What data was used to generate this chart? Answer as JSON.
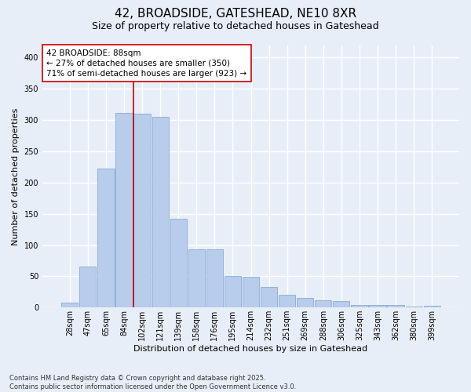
{
  "title_line1": "42, BROADSIDE, GATESHEAD, NE10 8XR",
  "title_line2": "Size of property relative to detached houses in Gateshead",
  "xlabel": "Distribution of detached houses by size in Gateshead",
  "ylabel": "Number of detached properties",
  "categories": [
    "28sqm",
    "47sqm",
    "65sqm",
    "84sqm",
    "102sqm",
    "121sqm",
    "139sqm",
    "158sqm",
    "176sqm",
    "195sqm",
    "214sqm",
    "232sqm",
    "251sqm",
    "269sqm",
    "288sqm",
    "306sqm",
    "325sqm",
    "343sqm",
    "362sqm",
    "380sqm",
    "399sqm"
  ],
  "bar_values": [
    8,
    65,
    222,
    312,
    310,
    305,
    142,
    93,
    93,
    50,
    49,
    33,
    20,
    15,
    12,
    10,
    4,
    4,
    4,
    1,
    3
  ],
  "bar_color": "#b8cceb",
  "bar_edgecolor": "#88aad4",
  "background_color": "#e8eef8",
  "grid_color": "#d0d8ec",
  "vline_x": 3.5,
  "vline_color": "#cc0000",
  "annotation_text": "42 BROADSIDE: 88sqm\n← 27% of detached houses are smaller (350)\n71% of semi-detached houses are larger (923) →",
  "annotation_box_facecolor": "#ffffff",
  "annotation_box_edgecolor": "#cc0000",
  "annotation_fontsize": 7.5,
  "footer_text": "Contains HM Land Registry data © Crown copyright and database right 2025.\nContains public sector information licensed under the Open Government Licence v3.0.",
  "ylim": [
    0,
    420
  ],
  "yticks": [
    0,
    50,
    100,
    150,
    200,
    250,
    300,
    350,
    400
  ],
  "title_fontsize": 11,
  "subtitle_fontsize": 9,
  "xlabel_fontsize": 8,
  "ylabel_fontsize": 8,
  "tick_fontsize": 7,
  "footer_fontsize": 6
}
